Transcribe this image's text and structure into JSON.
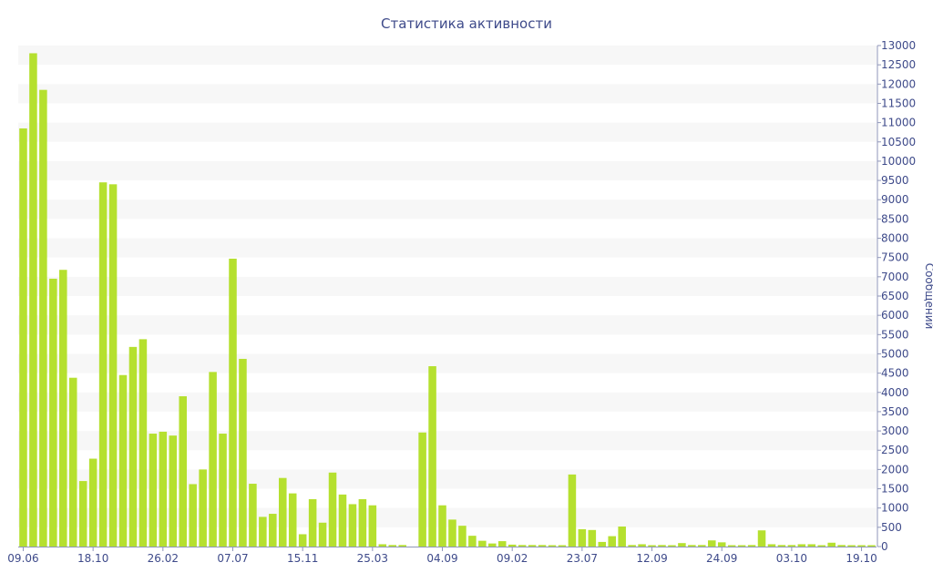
{
  "chart_data": {
    "type": "bar",
    "title": "Статистика активности",
    "ylabel": "Сообщений",
    "xlabel": "",
    "ylim": [
      0,
      13000
    ],
    "y_ticks": [
      0,
      500,
      1000,
      1500,
      2000,
      2500,
      3000,
      3500,
      4000,
      4500,
      5000,
      5500,
      6000,
      6500,
      7000,
      7500,
      8000,
      8500,
      9000,
      9500,
      10000,
      10500,
      11000,
      11500,
      12000,
      12500,
      13000
    ],
    "y_axis_position": "right",
    "grid": "horizontal-bands",
    "bar_color": "#b5e02f",
    "band_color": "#f7f7f7",
    "text_color": "#3e4a8a",
    "x_tick_labels": [
      {
        "label": "09.06",
        "index": 0
      },
      {
        "label": "18.10",
        "index": 7
      },
      {
        "label": "26.02",
        "index": 14
      },
      {
        "label": "07.07",
        "index": 21
      },
      {
        "label": "15.11",
        "index": 28
      },
      {
        "label": "25.03",
        "index": 35
      },
      {
        "label": "04.09",
        "index": 42
      },
      {
        "label": "09.02",
        "index": 49
      },
      {
        "label": "23.07",
        "index": 56
      },
      {
        "label": "12.09",
        "index": 63
      },
      {
        "label": "24.09",
        "index": 70
      },
      {
        "label": "03.10",
        "index": 77
      },
      {
        "label": "19.10",
        "index": 84
      }
    ],
    "values": [
      10850,
      12800,
      11850,
      6950,
      7180,
      4380,
      1700,
      2280,
      9450,
      9400,
      4450,
      5180,
      5380,
      2930,
      2980,
      2880,
      3900,
      1620,
      2000,
      4530,
      2930,
      7470,
      4870,
      1630,
      770,
      850,
      1780,
      1380,
      320,
      1230,
      620,
      1920,
      1350,
      1100,
      1230,
      1070,
      60,
      40,
      40,
      0,
      2960,
      4680,
      1070,
      700,
      540,
      280,
      150,
      80,
      140,
      50,
      40,
      40,
      40,
      20,
      30,
      1870,
      450,
      430,
      120,
      270,
      520,
      40,
      60,
      30,
      40,
      30,
      90,
      40,
      40,
      160,
      110,
      30,
      20,
      40,
      420,
      60,
      40,
      40,
      60,
      60,
      20,
      100,
      40,
      20,
      20,
      20
    ]
  }
}
